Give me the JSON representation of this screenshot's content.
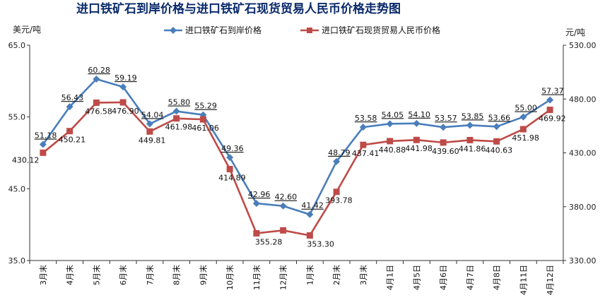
{
  "chart_data": {
    "type": "line",
    "title": "进口铁矿石到岸价格与进口铁矿石现货贸易人民币价格走势图",
    "y_left_unit": "美元/吨",
    "y_right_unit": "元/吨",
    "y_left": {
      "min": 35.0,
      "max": 65.0,
      "ticks": [
        "35.0",
        "45.0",
        "55.0",
        "65.0"
      ]
    },
    "y_right": {
      "min": 330.0,
      "max": 530.0,
      "ticks": [
        "330.00",
        "380.00",
        "430.00",
        "480.00",
        "530.00"
      ]
    },
    "categories": [
      "3月末",
      "4月末",
      "5月末",
      "6月末",
      "7月末",
      "8月末",
      "9月末",
      "10月末",
      "11月末",
      "12月末",
      "1月末",
      "2月末",
      "3月末",
      "4月1日",
      "4月5日",
      "4月6日",
      "4月7日",
      "4月8日",
      "4月11日",
      "4月12日"
    ],
    "series": [
      {
        "name": "进口铁矿石到岸价格",
        "axis": "left",
        "color": "#4a7ebb",
        "values": [
          51.18,
          56.43,
          60.28,
          59.19,
          54.04,
          55.8,
          55.29,
          49.36,
          42.96,
          42.6,
          41.42,
          48.79,
          53.58,
          54.05,
          54.1,
          53.57,
          53.85,
          53.66,
          55.0,
          57.37
        ],
        "labels": [
          "51.18",
          "56.43",
          "60.28",
          "59.19",
          "54.04",
          "55.80",
          "55.29",
          "49.36",
          "42.96",
          "42.60",
          "41.42",
          "48.79",
          "53.58",
          "54.05",
          "54.10",
          "53.57",
          "53.85",
          "53.66",
          "55.00",
          "57.37"
        ]
      },
      {
        "name": "进口铁矿石现货贸易人民币价格",
        "axis": "right",
        "color": "#be4b48",
        "values": [
          430.12,
          450.21,
          476.58,
          476.9,
          449.81,
          461.98,
          461.06,
          414.89,
          355.28,
          358.0,
          353.3,
          393.78,
          437.41,
          440.88,
          441.98,
          439.6,
          441.86,
          440.63,
          451.98,
          469.92
        ],
        "labels": [
          "430.12",
          "450.21",
          "476.58",
          "476.90",
          "449.81",
          "461.98",
          "461.06",
          "414.89",
          "355.28",
          "",
          "353.30",
          "393.78",
          "437.41",
          "440.88",
          "441.98",
          "439.60",
          "441.86",
          "440.63",
          "451.98",
          "469.92"
        ]
      }
    ],
    "legend_position": "top-center",
    "grid": false
  }
}
